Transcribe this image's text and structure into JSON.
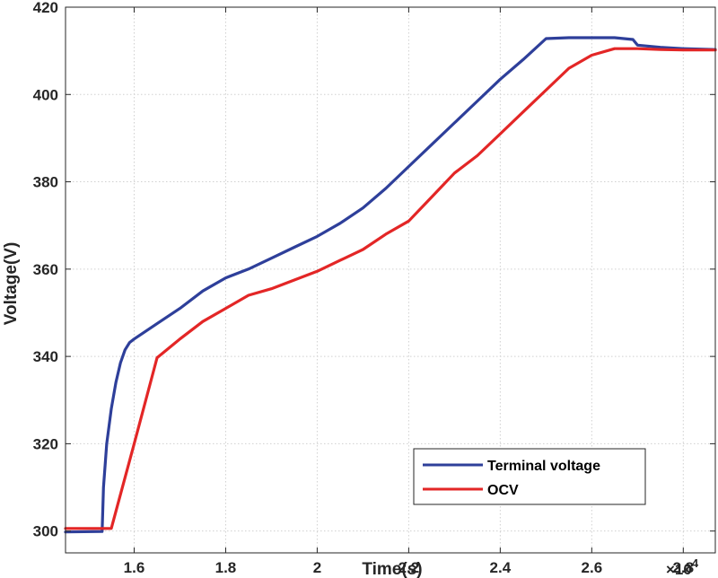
{
  "chart_data": {
    "type": "line",
    "xlabel": "Time(s)",
    "ylabel": "Voltage(V)",
    "x_exponent_label": "×10",
    "x_exponent_power": "4",
    "xlim": [
      1.45,
      2.87
    ],
    "ylim": [
      295,
      420
    ],
    "x_ticks": [
      1.6,
      1.8,
      2.0,
      2.2,
      2.4,
      2.6,
      2.8
    ],
    "x_tick_labels": [
      "1.6",
      "1.8",
      "2",
      "2.2",
      "2.4",
      "2.6",
      "2.8"
    ],
    "y_ticks": [
      300,
      320,
      340,
      360,
      380,
      400,
      420
    ],
    "y_tick_labels": [
      "300",
      "320",
      "340",
      "360",
      "380",
      "400",
      "420"
    ],
    "grid": true,
    "legend_position": "bottom-right",
    "series": [
      {
        "name": "Terminal voltage",
        "color": "#2e3f9a",
        "x": [
          1.45,
          1.53,
          1.533,
          1.54,
          1.55,
          1.56,
          1.57,
          1.58,
          1.59,
          1.6,
          1.65,
          1.7,
          1.75,
          1.8,
          1.85,
          1.9,
          1.95,
          2.0,
          2.05,
          2.1,
          2.15,
          2.2,
          2.25,
          2.3,
          2.35,
          2.4,
          2.45,
          2.5,
          2.55,
          2.6,
          2.65,
          2.69,
          2.7,
          2.75,
          2.8,
          2.87
        ],
        "y": [
          299.8,
          299.9,
          310,
          320,
          328,
          334,
          338.5,
          341.5,
          343.2,
          344,
          347.5,
          351,
          355,
          358,
          360,
          362.5,
          365,
          367.5,
          370.5,
          374,
          378.5,
          383.5,
          388.5,
          393.5,
          398.5,
          403.5,
          408,
          412.8,
          413,
          413,
          413,
          412.6,
          411.3,
          410.8,
          410.5,
          410.3
        ]
      },
      {
        "name": "OCV",
        "color": "#e32626",
        "x": [
          1.45,
          1.54,
          1.55,
          1.6,
          1.65,
          1.7,
          1.75,
          1.8,
          1.85,
          1.9,
          1.95,
          2.0,
          2.05,
          2.09,
          2.1,
          2.15,
          2.2,
          2.25,
          2.3,
          2.35,
          2.4,
          2.45,
          2.5,
          2.55,
          2.6,
          2.65,
          2.7,
          2.75,
          2.8,
          2.87
        ],
        "y": [
          300.6,
          300.6,
          300.6,
          320,
          339.7,
          344,
          348,
          351,
          354,
          355.5,
          357.5,
          359.5,
          362,
          364,
          364.5,
          368,
          371,
          376.5,
          382,
          386,
          391,
          396,
          401,
          406,
          409,
          410.5,
          410.5,
          410.3,
          410.2,
          410.2
        ]
      }
    ]
  }
}
